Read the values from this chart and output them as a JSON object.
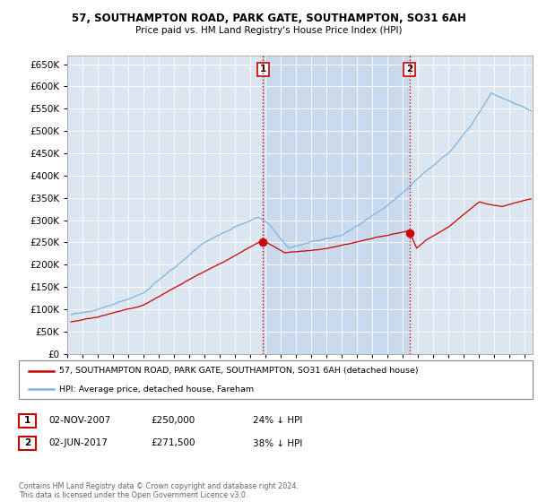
{
  "title": "57, SOUTHAMPTON ROAD, PARK GATE, SOUTHAMPTON, SO31 6AH",
  "subtitle": "Price paid vs. HM Land Registry's House Price Index (HPI)",
  "ytick_values": [
    0,
    50000,
    100000,
    150000,
    200000,
    250000,
    300000,
    350000,
    400000,
    450000,
    500000,
    550000,
    600000,
    650000
  ],
  "ylim": [
    0,
    670000
  ],
  "xlim_start": 1995.25,
  "xlim_end": 2025.5,
  "sale1_date": 2007.84,
  "sale1_price": 250000,
  "sale2_date": 2017.42,
  "sale2_price": 271500,
  "vline_color": "#cc0000",
  "hpi_color": "#7eb4e2",
  "price_color": "#cc0000",
  "plot_bg_color": "#dce6f1",
  "shade_color": "#c5d8ef",
  "legend_label_price": "57, SOUTHAMPTON ROAD, PARK GATE, SOUTHAMPTON, SO31 6AH (detached house)",
  "legend_label_hpi": "HPI: Average price, detached house, Fareham",
  "footer": "Contains HM Land Registry data © Crown copyright and database right 2024.\nThis data is licensed under the Open Government Licence v3.0.",
  "table_rows": [
    {
      "num": "1",
      "date": "02-NOV-2007",
      "price": "£250,000",
      "pct": "24% ↓ HPI"
    },
    {
      "num": "2",
      "date": "02-JUN-2017",
      "price": "£271,500",
      "pct": "38% ↓ HPI"
    }
  ]
}
